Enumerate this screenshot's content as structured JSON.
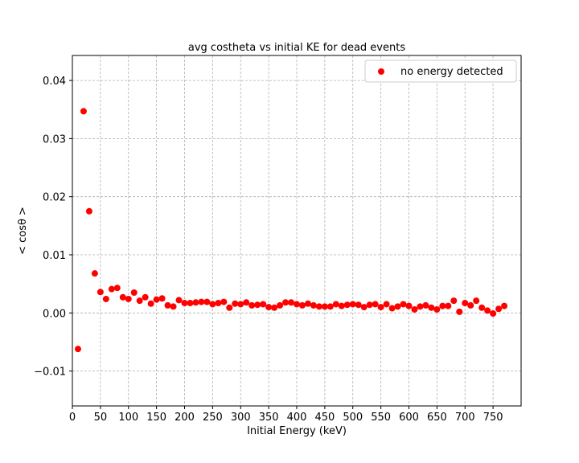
{
  "chart_data": {
    "type": "scatter",
    "title": "avg costheta vs initial KE for dead events",
    "xlabel": "Initial Energy (keV)",
    "ylabel": "< cosθ >",
    "xlim": [
      0,
      800
    ],
    "ylim": [
      -0.016,
      0.0443
    ],
    "x_ticks": [
      0,
      50,
      100,
      150,
      200,
      250,
      300,
      350,
      400,
      450,
      500,
      550,
      600,
      650,
      700,
      750
    ],
    "x_tick_labels": [
      "0",
      "50",
      "100",
      "150",
      "200",
      "250",
      "300",
      "350",
      "400",
      "450",
      "500",
      "550",
      "600",
      "650",
      "700",
      "750"
    ],
    "y_ticks": [
      -0.01,
      0.0,
      0.01,
      0.02,
      0.03,
      0.04
    ],
    "y_tick_labels": [
      "−0.01",
      "0.00",
      "0.01",
      "0.02",
      "0.03",
      "0.04"
    ],
    "grid": true,
    "legend_position": "upper right",
    "series": [
      {
        "name": "no energy detected",
        "color": "#ff0000",
        "x": [
          10,
          20,
          30,
          40,
          50,
          60,
          70,
          80,
          90,
          100,
          110,
          120,
          130,
          140,
          150,
          160,
          170,
          180,
          190,
          200,
          210,
          220,
          230,
          240,
          250,
          260,
          270,
          280,
          290,
          300,
          310,
          320,
          330,
          340,
          350,
          360,
          370,
          380,
          390,
          400,
          410,
          420,
          430,
          440,
          450,
          460,
          470,
          480,
          490,
          500,
          510,
          520,
          530,
          540,
          550,
          560,
          570,
          580,
          590,
          600,
          610,
          620,
          630,
          640,
          650,
          660,
          670,
          680,
          690,
          700,
          710,
          720,
          730,
          740,
          750,
          760,
          770
        ],
        "y": [
          -0.0062,
          0.0347,
          0.0175,
          0.0068,
          0.0036,
          0.0024,
          0.0041,
          0.0043,
          0.0027,
          0.0024,
          0.0035,
          0.0021,
          0.0027,
          0.0016,
          0.0023,
          0.0025,
          0.0013,
          0.0011,
          0.0022,
          0.0017,
          0.0017,
          0.0018,
          0.0019,
          0.0019,
          0.0015,
          0.0017,
          0.0019,
          0.0009,
          0.0016,
          0.0015,
          0.0018,
          0.0013,
          0.0014,
          0.0015,
          0.001,
          0.0009,
          0.0013,
          0.0018,
          0.0018,
          0.0015,
          0.0013,
          0.0016,
          0.0013,
          0.0011,
          0.0011,
          0.0011,
          0.0015,
          0.0012,
          0.0014,
          0.0015,
          0.0014,
          0.001,
          0.0014,
          0.0015,
          0.001,
          0.0015,
          0.0008,
          0.0011,
          0.0015,
          0.0012,
          0.0006,
          0.0011,
          0.0013,
          0.0009,
          0.0006,
          0.0012,
          0.0012,
          0.0021,
          0.0002,
          0.0017,
          0.0013,
          0.0021,
          0.0009,
          0.0004,
          -0.0001,
          0.0007,
          0.0012
        ]
      }
    ]
  }
}
